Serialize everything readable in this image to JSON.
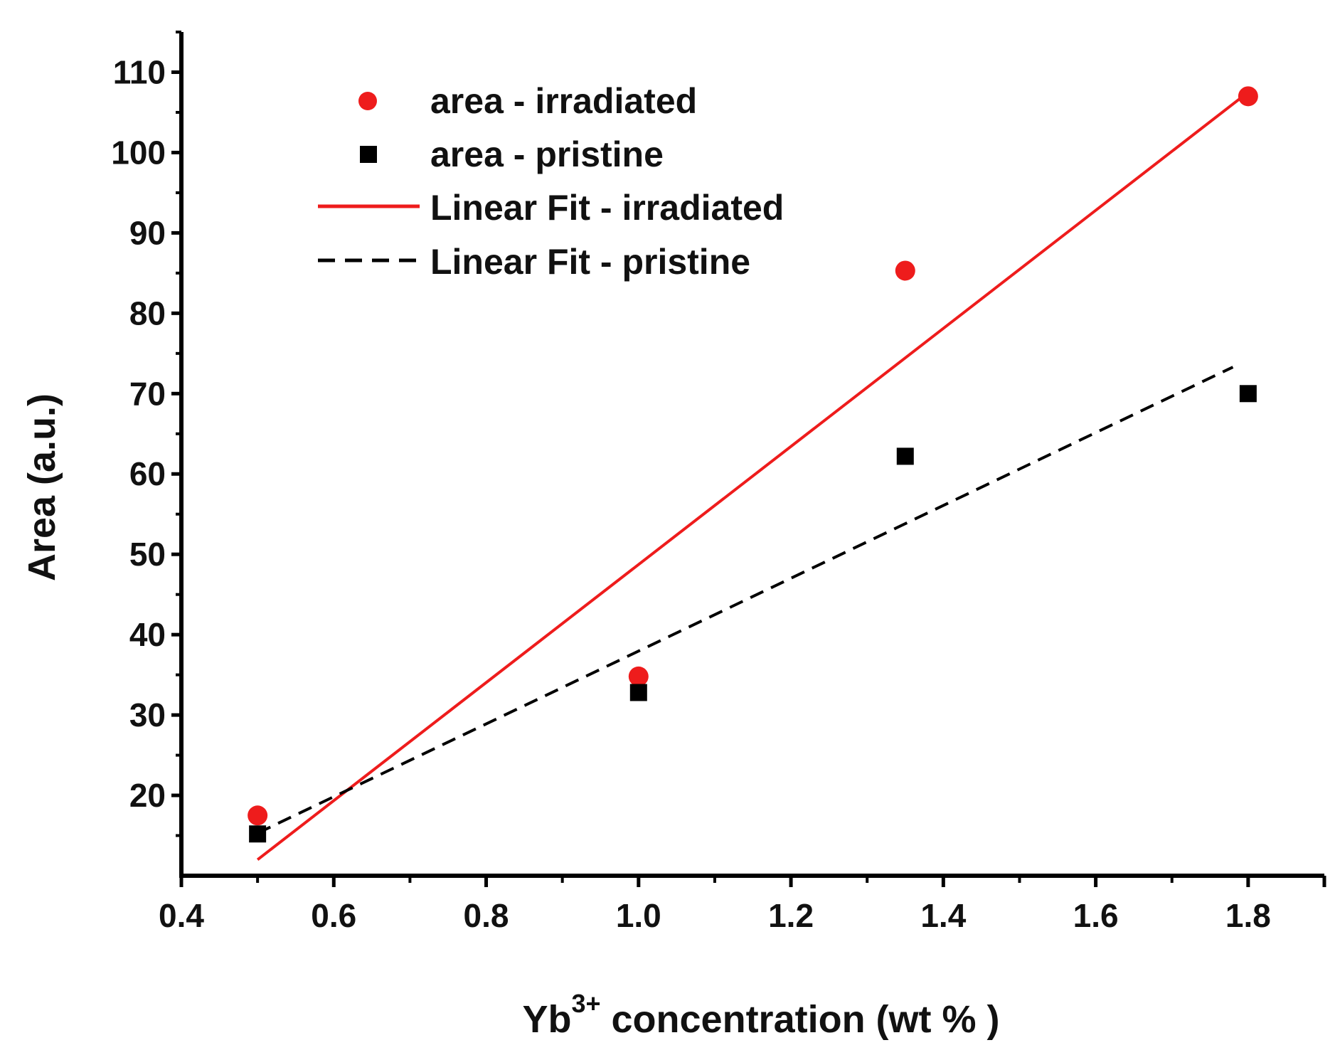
{
  "chart_data": {
    "type": "scatter",
    "xlabel_main": "Yb",
    "xlabel_sup": "3+",
    "xlabel_rest": " concentration (wt % )",
    "ylabel": "Area (a.u.)",
    "xlim": [
      0.4,
      1.9
    ],
    "ylim": [
      10,
      115
    ],
    "xticks": [
      0.4,
      0.6,
      0.8,
      1.0,
      1.2,
      1.4,
      1.6,
      1.8
    ],
    "xtick_labels": [
      "0.4",
      "0.6",
      "0.8",
      "1.0",
      "1.2",
      "1.4",
      "1.6",
      "1.8"
    ],
    "yticks": [
      20,
      30,
      40,
      50,
      60,
      70,
      80,
      90,
      100,
      110
    ],
    "ytick_labels": [
      "20",
      "30",
      "40",
      "50",
      "60",
      "70",
      "80",
      "90",
      "100",
      "110"
    ],
    "series": [
      {
        "name": "area - irradiated",
        "kind": "points",
        "marker": "circle",
        "color": "#ee1c1c",
        "x": [
          0.5,
          1.0,
          1.35,
          1.8
        ],
        "y": [
          17.5,
          34.8,
          85.3,
          107.0
        ]
      },
      {
        "name": "area - pristine",
        "kind": "points",
        "marker": "square",
        "color": "#000000",
        "x": [
          0.5,
          1.0,
          1.35,
          1.8
        ],
        "y": [
          15.2,
          32.8,
          62.2,
          70.0
        ]
      },
      {
        "name": "Linear Fit - irradiated",
        "kind": "line",
        "style": "solid",
        "color": "#ee1c1c",
        "x": [
          0.5,
          1.8
        ],
        "y": [
          12.0,
          107.5
        ]
      },
      {
        "name": "Linear Fit - pristine",
        "kind": "line",
        "style": "dashed",
        "color": "#000000",
        "x": [
          0.5,
          1.78
        ],
        "y": [
          15.3,
          73.3
        ]
      }
    ]
  }
}
